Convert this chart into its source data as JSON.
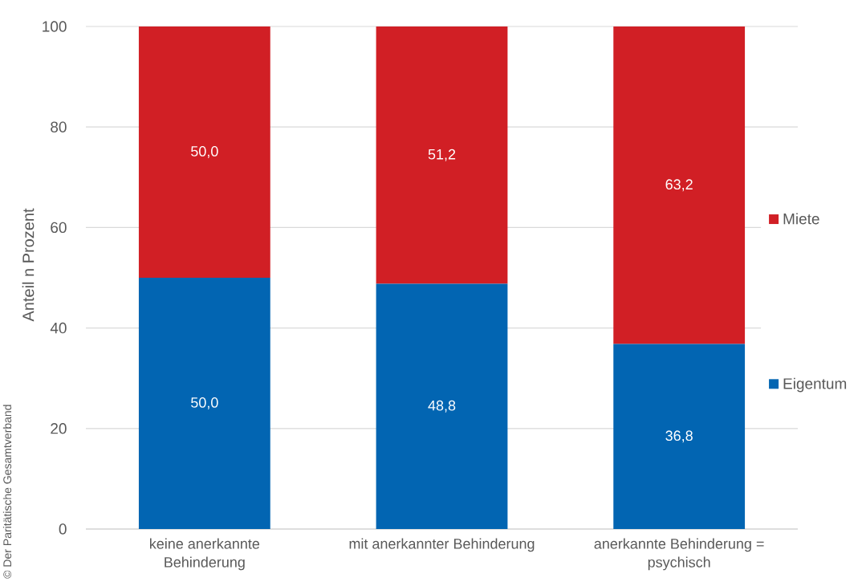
{
  "chart_data": {
    "type": "bar",
    "stacked": true,
    "ylabel": "Anteil n Prozent",
    "categories": [
      "keine anerkannte Behinderung",
      "mit anerkannter Behinderung",
      "anerkannte Behinderung = psychisch"
    ],
    "series": [
      {
        "name": "Eigentum",
        "color": "#0265b2",
        "values": [
          50.0,
          48.8,
          36.8
        ],
        "value_labels": [
          "50,0",
          "48,8",
          "36,8"
        ]
      },
      {
        "name": "Miete",
        "color": "#d11f25",
        "values": [
          50.0,
          51.2,
          63.2
        ],
        "value_labels": [
          "50,0",
          "51,2",
          "63,2"
        ]
      }
    ],
    "ylim": [
      0,
      100
    ],
    "yticks": [
      0,
      20,
      40,
      60,
      80,
      100
    ],
    "grid": "y",
    "legend": "right",
    "annotations": [
      "© Der Paritätische Gesamtverband"
    ]
  }
}
